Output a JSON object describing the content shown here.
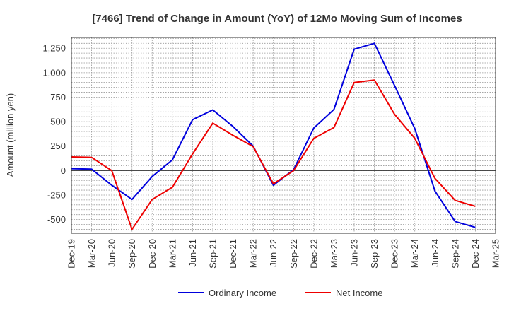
{
  "chart_data": {
    "type": "line",
    "title": "[7466]  Trend of Change in Amount (YoY) of 12Mo Moving Sum of Incomes",
    "xlabel": "",
    "ylabel": "Amount (million yen)",
    "categories": [
      "Dec-19",
      "Mar-20",
      "Jun-20",
      "Sep-20",
      "Dec-20",
      "Mar-21",
      "Jun-21",
      "Sep-21",
      "Dec-21",
      "Mar-22",
      "Jun-22",
      "Sep-22",
      "Dec-22",
      "Mar-23",
      "Jun-23",
      "Sep-23",
      "Dec-23",
      "Mar-24",
      "Jun-24",
      "Sep-24",
      "Dec-24",
      "Mar-25"
    ],
    "ylim": [
      -640,
      1360
    ],
    "yticks": [
      -500,
      -250,
      0,
      250,
      500,
      750,
      1000,
      1250
    ],
    "ytick_labels": [
      "-500",
      "-250",
      "0",
      "250",
      "500",
      "750",
      "1,000",
      "1,250"
    ],
    "grid": true,
    "legend_position": "bottom",
    "series": [
      {
        "name": "Ordinary Income",
        "color": "#0000dd",
        "values": [
          20,
          15,
          -150,
          -295,
          -60,
          110,
          520,
          620,
          450,
          250,
          -150,
          10,
          435,
          625,
          1240,
          1300,
          870,
          430,
          -210,
          -520,
          -580,
          null
        ]
      },
      {
        "name": "Net Income",
        "color": "#ee0000",
        "values": [
          140,
          135,
          0,
          -600,
          -295,
          -170,
          170,
          485,
          360,
          245,
          -135,
          0,
          330,
          440,
          900,
          925,
          575,
          330,
          -80,
          -305,
          -365,
          null
        ]
      }
    ]
  }
}
